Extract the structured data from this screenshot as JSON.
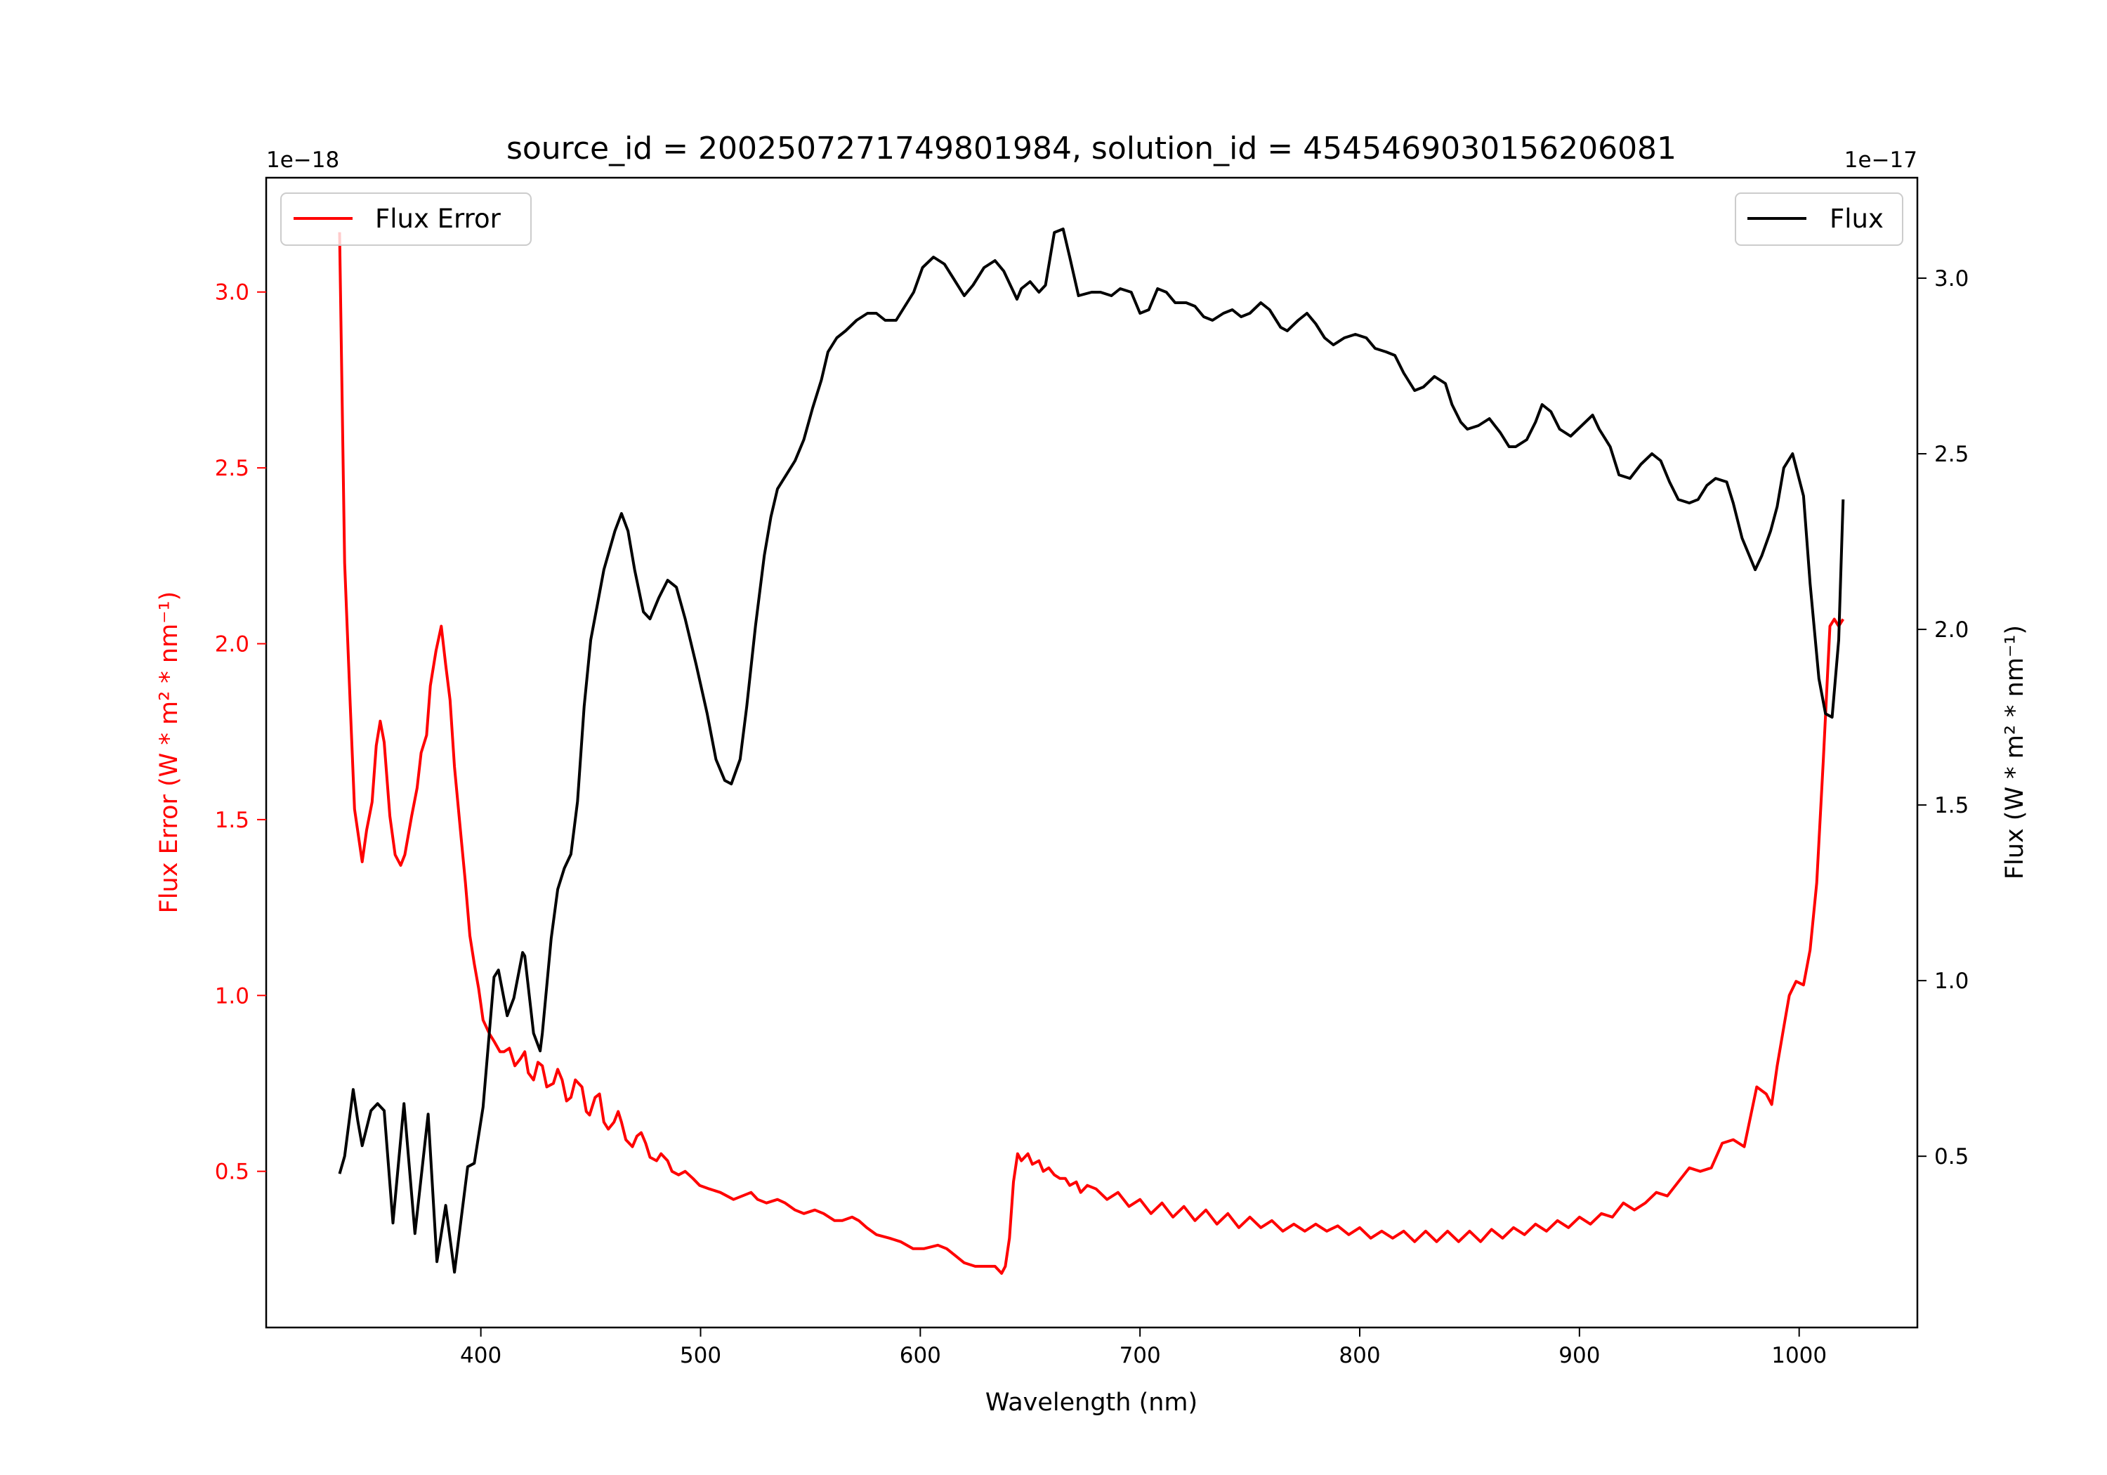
{
  "chart_data": {
    "type": "line",
    "title": "source_id = 2002507271749801984, solution_id = 4545469030156206081",
    "xlabel": "Wavelength (nm)",
    "xlim": [
      302.3,
      1053.8
    ],
    "xticks": [
      400,
      500,
      600,
      700,
      800,
      900,
      1000
    ],
    "grid": false,
    "left_axis": {
      "label": "Flux Error (W * m² * nm⁻¹)",
      "offset_text": "1e−18",
      "color": "#ff0000",
      "ylim": [
        0.056,
        3.325
      ],
      "ticks": [
        "0.5",
        "1.0",
        "1.5",
        "2.0",
        "2.5",
        "3.0"
      ]
    },
    "right_axis": {
      "label": "Flux (W * m² * nm⁻¹)",
      "offset_text": "1e−17",
      "color": "#000000",
      "ylim": [
        0.0124,
        3.286
      ],
      "ticks": [
        "0.5",
        "1.0",
        "1.5",
        "2.0",
        "2.5",
        "3.0"
      ]
    },
    "series": [
      {
        "name": "Flux Error",
        "axis": "left",
        "color": "#ff0000",
        "legend": "top-left",
        "x": [
          335.7,
          338,
          340.6,
          342.5,
          346,
          348,
          350.5,
          352.4,
          354.2,
          356,
          358.6,
          361,
          363.5,
          365.4,
          368.5,
          371,
          372.8,
          375.3,
          377,
          379.6,
          382,
          384,
          386,
          388,
          391,
          393,
          395,
          397,
          399,
          401,
          404,
          406,
          408.7,
          410.5,
          413,
          415.5,
          418,
          420,
          421.6,
          424,
          426,
          428,
          430,
          433,
          435,
          437,
          439,
          441,
          443,
          446,
          448,
          449.5,
          452,
          454,
          456,
          458,
          460.6,
          462.5,
          464,
          466,
          469,
          471,
          473,
          475,
          477,
          480,
          482,
          485,
          487,
          490,
          493,
          496.5,
          499.6,
          504,
          509,
          512,
          515,
          519,
          523,
          526,
          530,
          535,
          538.5,
          543,
          547,
          552,
          556,
          561,
          564.5,
          569,
          572,
          575.6,
          580,
          586,
          591,
          596.7,
          601.6,
          608,
          612,
          616,
          620,
          625,
          631,
          634,
          637,
          638.7,
          640.6,
          642.4,
          644.3,
          646,
          649,
          651,
          654,
          656,
          658.5,
          661,
          663.5,
          666,
          668,
          671,
          673,
          676,
          680,
          685,
          690,
          695,
          700,
          705,
          710,
          715,
          720,
          725,
          730,
          735,
          740,
          745,
          750,
          755,
          760,
          765,
          770,
          775,
          780,
          785,
          790,
          795,
          800,
          805,
          810,
          815,
          820,
          825,
          830,
          835,
          840,
          845,
          850,
          855,
          860,
          865,
          870,
          875,
          880,
          885,
          890,
          895,
          900,
          905,
          910,
          915,
          920,
          925,
          930,
          935,
          940,
          945,
          950,
          955,
          960,
          965,
          970,
          975,
          980.7,
          985,
          987.5,
          990,
          993,
          995.5,
          998.6,
          1002,
          1005,
          1008,
          1011,
          1014,
          1016,
          1018,
          1020
        ],
        "y": [
          3.17,
          2.23,
          1.82,
          1.53,
          1.38,
          1.47,
          1.55,
          1.71,
          1.78,
          1.72,
          1.51,
          1.4,
          1.37,
          1.4,
          1.51,
          1.59,
          1.69,
          1.74,
          1.88,
          1.98,
          2.05,
          1.94,
          1.84,
          1.65,
          1.45,
          1.32,
          1.17,
          1.09,
          1.02,
          0.93,
          0.89,
          0.87,
          0.84,
          0.84,
          0.85,
          0.8,
          0.82,
          0.84,
          0.78,
          0.76,
          0.81,
          0.8,
          0.74,
          0.75,
          0.79,
          0.76,
          0.7,
          0.71,
          0.76,
          0.74,
          0.67,
          0.66,
          0.71,
          0.72,
          0.64,
          0.62,
          0.64,
          0.67,
          0.64,
          0.59,
          0.57,
          0.6,
          0.61,
          0.58,
          0.54,
          0.53,
          0.55,
          0.53,
          0.5,
          0.49,
          0.5,
          0.48,
          0.46,
          0.45,
          0.44,
          0.43,
          0.42,
          0.43,
          0.44,
          0.42,
          0.41,
          0.42,
          0.41,
          0.39,
          0.38,
          0.39,
          0.38,
          0.36,
          0.36,
          0.37,
          0.36,
          0.34,
          0.32,
          0.31,
          0.3,
          0.28,
          0.28,
          0.29,
          0.28,
          0.26,
          0.24,
          0.23,
          0.23,
          0.23,
          0.21,
          0.23,
          0.31,
          0.47,
          0.55,
          0.53,
          0.55,
          0.52,
          0.53,
          0.5,
          0.51,
          0.49,
          0.48,
          0.48,
          0.46,
          0.47,
          0.44,
          0.46,
          0.45,
          0.42,
          0.44,
          0.4,
          0.42,
          0.38,
          0.41,
          0.37,
          0.4,
          0.36,
          0.39,
          0.35,
          0.38,
          0.34,
          0.37,
          0.34,
          0.36,
          0.33,
          0.35,
          0.33,
          0.35,
          0.33,
          0.345,
          0.32,
          0.34,
          0.31,
          0.33,
          0.31,
          0.33,
          0.3,
          0.33,
          0.3,
          0.33,
          0.3,
          0.33,
          0.3,
          0.335,
          0.31,
          0.34,
          0.32,
          0.35,
          0.33,
          0.36,
          0.34,
          0.37,
          0.35,
          0.38,
          0.37,
          0.41,
          0.39,
          0.41,
          0.44,
          0.43,
          0.47,
          0.51,
          0.5,
          0.51,
          0.58,
          0.59,
          0.57,
          0.74,
          0.72,
          0.69,
          0.8,
          0.91,
          1.0,
          1.04,
          1.03,
          1.13,
          1.32,
          1.67,
          2.05,
          2.07,
          2.05,
          2.07
        ]
      },
      {
        "name": "Flux",
        "axis": "right",
        "color": "#000000",
        "legend": "top-right",
        "x": [
          335.7,
          338,
          341.9,
          344,
          346,
          350,
          353,
          356,
          360,
          365,
          370,
          376,
          380,
          384,
          388,
          394,
          397,
          401,
          406,
          408,
          412,
          415,
          419,
          420,
          424,
          427,
          428,
          432,
          435,
          438,
          441,
          444,
          447,
          450,
          453,
          456,
          461,
          464,
          467,
          470,
          474,
          477,
          481,
          485,
          489,
          493,
          498,
          503,
          507,
          511,
          514,
          518,
          521,
          525,
          529,
          532,
          535,
          539,
          543,
          547,
          551,
          555,
          558,
          562,
          566,
          571,
          576,
          580,
          584,
          589,
          593,
          597,
          601,
          606,
          611,
          615,
          620,
          624,
          629,
          634,
          638,
          644,
          646,
          650,
          654,
          657,
          661,
          665,
          668,
          672,
          678,
          682,
          687,
          691,
          696,
          700,
          704,
          708,
          712,
          716,
          721,
          725,
          729,
          733,
          738,
          742,
          746,
          750,
          755,
          759,
          764,
          767,
          772,
          776,
          780,
          784,
          788,
          793,
          798,
          803,
          807,
          812,
          816,
          820,
          825,
          829,
          834,
          839,
          842,
          846,
          849,
          854,
          859,
          864,
          868,
          871,
          876,
          880,
          883,
          887,
          891,
          896,
          901,
          906,
          909,
          914,
          918,
          923,
          928,
          933,
          937,
          941,
          945,
          950,
          954,
          958,
          962,
          967,
          970,
          974,
          980,
          983,
          987,
          990,
          993,
          997,
          1002,
          1005,
          1009,
          1012,
          1015,
          1018,
          1020
        ],
        "y": [
          0.45,
          0.5,
          0.69,
          0.6,
          0.53,
          0.63,
          0.65,
          0.63,
          0.31,
          0.65,
          0.28,
          0.62,
          0.2,
          0.36,
          0.17,
          0.47,
          0.48,
          0.64,
          1.01,
          1.03,
          0.9,
          0.95,
          1.08,
          1.07,
          0.85,
          0.8,
          0.85,
          1.12,
          1.26,
          1.32,
          1.36,
          1.51,
          1.78,
          1.97,
          2.07,
          2.17,
          2.28,
          2.33,
          2.28,
          2.17,
          2.05,
          2.03,
          2.09,
          2.14,
          2.12,
          2.03,
          1.9,
          1.76,
          1.63,
          1.57,
          1.56,
          1.63,
          1.78,
          2.01,
          2.21,
          2.32,
          2.4,
          2.44,
          2.48,
          2.54,
          2.63,
          2.71,
          2.79,
          2.83,
          2.85,
          2.88,
          2.9,
          2.9,
          2.88,
          2.88,
          2.92,
          2.96,
          3.03,
          3.06,
          3.04,
          3.0,
          2.95,
          2.98,
          3.03,
          3.05,
          3.02,
          2.94,
          2.97,
          2.99,
          2.96,
          2.98,
          3.13,
          3.14,
          3.06,
          2.95,
          2.96,
          2.96,
          2.95,
          2.97,
          2.96,
          2.9,
          2.91,
          2.97,
          2.96,
          2.93,
          2.93,
          2.92,
          2.89,
          2.88,
          2.9,
          2.91,
          2.89,
          2.9,
          2.93,
          2.91,
          2.86,
          2.85,
          2.88,
          2.9,
          2.87,
          2.83,
          2.81,
          2.83,
          2.84,
          2.83,
          2.8,
          2.79,
          2.78,
          2.73,
          2.68,
          2.69,
          2.72,
          2.7,
          2.64,
          2.59,
          2.57,
          2.58,
          2.6,
          2.56,
          2.52,
          2.52,
          2.54,
          2.59,
          2.64,
          2.62,
          2.57,
          2.55,
          2.58,
          2.61,
          2.57,
          2.52,
          2.44,
          2.43,
          2.47,
          2.5,
          2.48,
          2.42,
          2.37,
          2.36,
          2.37,
          2.41,
          2.43,
          2.42,
          2.36,
          2.26,
          2.17,
          2.21,
          2.28,
          2.35,
          2.46,
          2.5,
          2.38,
          2.13,
          1.86,
          1.76,
          1.75,
          1.97,
          2.37
        ]
      }
    ]
  }
}
